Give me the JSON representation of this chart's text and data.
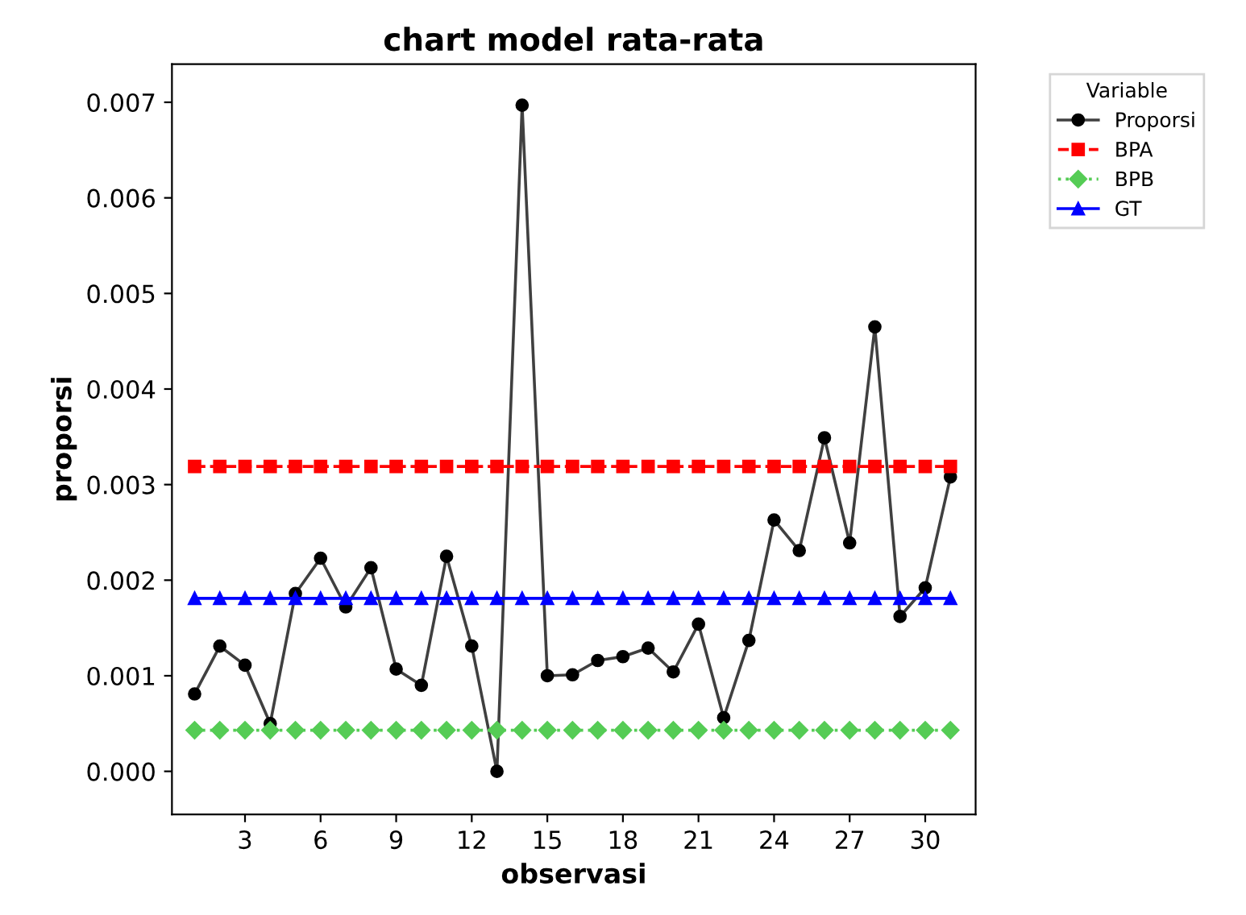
{
  "chart_data": {
    "type": "line",
    "title": "chart model rata-rata",
    "xlabel": "observasi",
    "ylabel": "proporsi",
    "legend_title": "Variable",
    "legend": "top right",
    "grid": false,
    "x": [
      1,
      2,
      3,
      4,
      5,
      6,
      7,
      8,
      9,
      10,
      11,
      12,
      13,
      14,
      15,
      16,
      17,
      18,
      19,
      20,
      21,
      22,
      23,
      24,
      25,
      26,
      27,
      28,
      29,
      30,
      31
    ],
    "xlim": [
      0.1,
      32
    ],
    "xticks": [
      3,
      6,
      9,
      12,
      15,
      18,
      21,
      24,
      27,
      30
    ],
    "ylim": [
      -0.00045,
      0.0074
    ],
    "yticks": [
      {
        "value": 0,
        "label": "0.000"
      },
      {
        "value": 0.001,
        "label": "0.001"
      },
      {
        "value": 0.002,
        "label": "0.002"
      },
      {
        "value": 0.003,
        "label": "0.003"
      },
      {
        "value": 0.004,
        "label": "0.004"
      },
      {
        "value": 0.005,
        "label": "0.005"
      },
      {
        "value": 0.006,
        "label": "0.006"
      },
      {
        "value": 0.007,
        "label": "0.007"
      }
    ],
    "series": [
      {
        "name": "Proporsi",
        "color": "#404040",
        "marker": "circle",
        "line_style": "solid",
        "values": [
          0.00081,
          0.00131,
          0.00111,
          0.0005,
          0.00186,
          0.00223,
          0.00172,
          0.00213,
          0.00107,
          0.0009,
          0.00225,
          0.00131,
          0.0,
          0.00697,
          0.001,
          0.00101,
          0.00116,
          0.0012,
          0.00129,
          0.00104,
          0.00154,
          0.00056,
          0.00137,
          0.00263,
          0.00231,
          0.00349,
          0.00239,
          0.00465,
          0.00162,
          0.00192,
          0.00308
        ]
      },
      {
        "name": "BPA",
        "color": "#ff0000",
        "marker": "square",
        "line_style": "dashed",
        "values": [
          0.00319,
          0.00319,
          0.00319,
          0.00319,
          0.00319,
          0.00319,
          0.00319,
          0.00319,
          0.00319,
          0.00319,
          0.00319,
          0.00319,
          0.00319,
          0.00319,
          0.00319,
          0.00319,
          0.00319,
          0.00319,
          0.00319,
          0.00319,
          0.00319,
          0.00319,
          0.00319,
          0.00319,
          0.00319,
          0.00319,
          0.00319,
          0.00319,
          0.00319,
          0.00319,
          0.00319
        ]
      },
      {
        "name": "BPB",
        "color": "#55cc55",
        "marker": "diamond",
        "line_style": "dotted",
        "values": [
          0.00043,
          0.00043,
          0.00043,
          0.00043,
          0.00043,
          0.00043,
          0.00043,
          0.00043,
          0.00043,
          0.00043,
          0.00043,
          0.00043,
          0.00043,
          0.00043,
          0.00043,
          0.00043,
          0.00043,
          0.00043,
          0.00043,
          0.00043,
          0.00043,
          0.00043,
          0.00043,
          0.00043,
          0.00043,
          0.00043,
          0.00043,
          0.00043,
          0.00043,
          0.00043,
          0.00043
        ]
      },
      {
        "name": "GT",
        "color": "#0000ff",
        "marker": "triangle",
        "line_style": "solid",
        "values": [
          0.00181,
          0.00181,
          0.00181,
          0.00181,
          0.00181,
          0.00181,
          0.00181,
          0.00181,
          0.00181,
          0.00181,
          0.00181,
          0.00181,
          0.00181,
          0.00181,
          0.00181,
          0.00181,
          0.00181,
          0.00181,
          0.00181,
          0.00181,
          0.00181,
          0.00181,
          0.00181,
          0.00181,
          0.00181,
          0.00181,
          0.00181,
          0.00181,
          0.00181,
          0.00181,
          0.00181
        ]
      }
    ]
  }
}
